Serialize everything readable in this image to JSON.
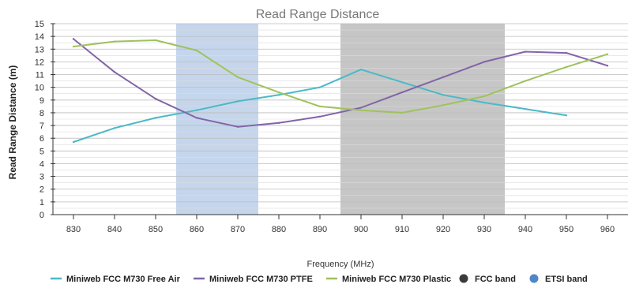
{
  "chart_data": {
    "type": "line",
    "title": "Read Range Distance",
    "xlabel": "Frequency (MHz)",
    "ylabel": "Read Range Distance (m)",
    "x": [
      830,
      840,
      850,
      860,
      870,
      880,
      890,
      900,
      910,
      920,
      930,
      940,
      950,
      960
    ],
    "xlim": [
      825,
      965
    ],
    "ylim": [
      0,
      15
    ],
    "x_ticks": [
      "830",
      "840",
      "850",
      "860",
      "870",
      "880",
      "890",
      "900",
      "910",
      "920",
      "930",
      "940",
      "950",
      "960"
    ],
    "y_ticks": [
      "0",
      "1",
      "2",
      "3",
      "4",
      "5",
      "6",
      "7",
      "8",
      "9",
      "10",
      "11",
      "12",
      "13",
      "14",
      "15"
    ],
    "grid": true,
    "legend_position": "bottom",
    "bands": [
      {
        "name": "ETSI band",
        "from": 855,
        "to": 875,
        "color": "#c5d6ec"
      },
      {
        "name": "FCC  band",
        "from": 895,
        "to": 935,
        "color": "#c6c6c6"
      }
    ],
    "series": [
      {
        "name": "Miniweb FCC M730 Free Air",
        "color": "#4bb9c7",
        "x": [
          830,
          840,
          850,
          860,
          870,
          880,
          890,
          900,
          910,
          920,
          930,
          940,
          950
        ],
        "values": [
          5.7,
          6.8,
          7.6,
          8.2,
          8.9,
          9.4,
          10.0,
          11.4,
          10.4,
          9.4,
          8.8,
          8.3,
          7.8
        ]
      },
      {
        "name": "Miniweb FCC M730 PTFE",
        "color": "#8264a8",
        "x": [
          830,
          840,
          850,
          860,
          870,
          880,
          890,
          900,
          910,
          920,
          930,
          940,
          950,
          960
        ],
        "values": [
          13.8,
          11.2,
          9.1,
          7.6,
          6.9,
          7.2,
          7.7,
          8.4,
          9.6,
          10.8,
          12.0,
          12.8,
          12.7,
          11.7
        ]
      },
      {
        "name": "Miniweb FCC M730 Plastic",
        "color": "#9fc25c",
        "x": [
          830,
          840,
          850,
          860,
          870,
          880,
          890,
          900,
          910,
          920,
          930,
          940,
          950,
          960
        ],
        "values": [
          13.2,
          13.6,
          13.7,
          12.9,
          10.8,
          9.6,
          8.5,
          8.2,
          8.0,
          8.6,
          9.3,
          10.5,
          11.6,
          12.6
        ]
      }
    ],
    "legend": [
      {
        "label": "Miniweb FCC M730 Free Air",
        "color": "#4bb9c7",
        "marker": "line"
      },
      {
        "label": "Miniweb FCC M730 PTFE",
        "color": "#8264a8",
        "marker": "line"
      },
      {
        "label": "Miniweb FCC M730 Plastic",
        "color": "#9fc25c",
        "marker": "line"
      },
      {
        "label": "FCC  band",
        "color": "#3b3b3b",
        "marker": "circle"
      },
      {
        "label": "ETSI band",
        "color": "#4f86c6",
        "marker": "circle"
      }
    ]
  }
}
